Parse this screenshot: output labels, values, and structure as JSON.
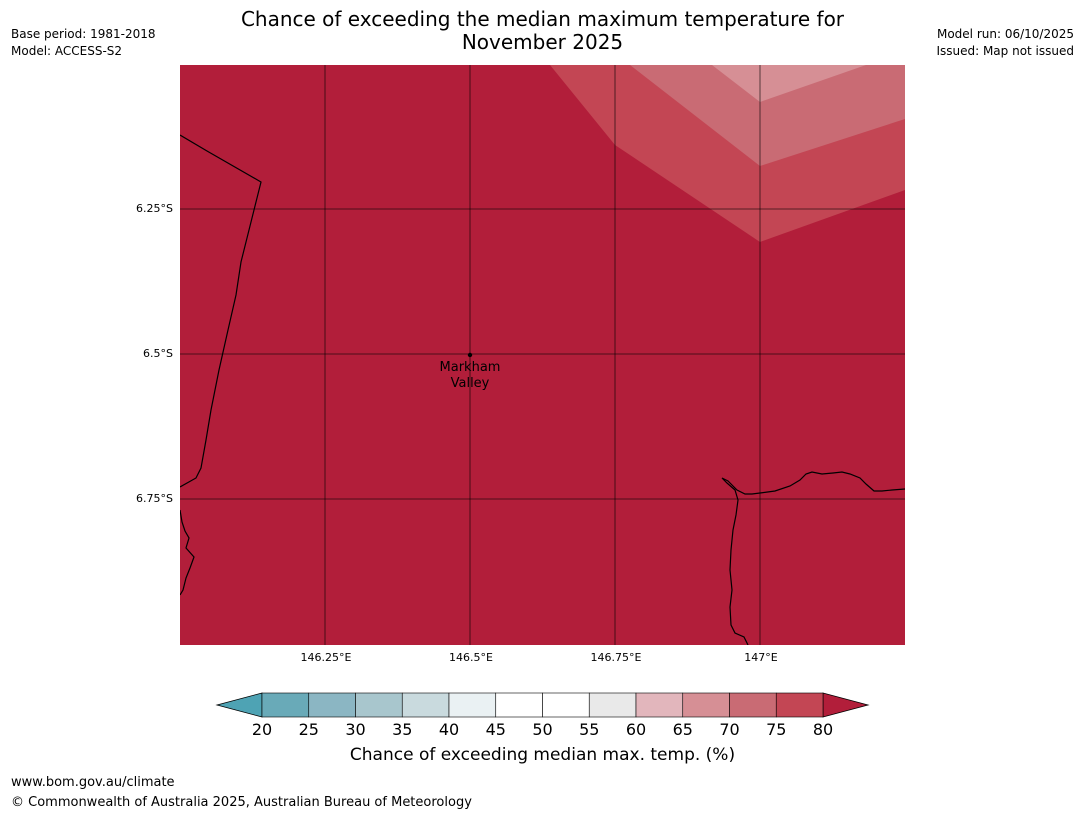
{
  "title": {
    "line1": "Chance of exceeding the median maximum temperature for",
    "line2": "November 2025"
  },
  "meta_left": {
    "base_period": "Base period: 1981-2018",
    "model": "Model: ACCESS-S2"
  },
  "meta_right": {
    "model_run": "Model run: 06/10/2025",
    "issued": "Issued: Map not issued"
  },
  "map": {
    "lat_labels": [
      "6.25°S",
      "6.5°S",
      "6.75°S"
    ],
    "lon_labels": [
      "146.25°E",
      "146.5°E",
      "146.75°E",
      "147°E"
    ],
    "place": {
      "name_line1": "Markham",
      "name_line2": "Valley",
      "marker": "location-dot"
    },
    "colors": {
      "over_80": "#b21e3a",
      "band_75_80": "#c34654",
      "band_70_75": "#c96b74",
      "band_65_70": "#d68f95",
      "gridline": "#000000",
      "coastline": "#000000"
    }
  },
  "colorbar": {
    "ticks": [
      "20",
      "25",
      "30",
      "35",
      "40",
      "45",
      "50",
      "55",
      "60",
      "65",
      "70",
      "75",
      "80"
    ],
    "colors": [
      "#69aab8",
      "#8bb6c3",
      "#a8c6cd",
      "#c9dade",
      "#eaf1f3",
      "#ffffff",
      "#ffffff",
      "#e9e9e9",
      "#e2b6bc",
      "#d68f95",
      "#c96b74",
      "#c34654"
    ],
    "under_color": "#4ea3b4",
    "over_color": "#b21e3a",
    "label": "Chance of exceeding median max. temp. (%)"
  },
  "footer": {
    "url": "www.bom.gov.au/climate",
    "copyright": "© Commonwealth of Australia 2025, Australian Bureau of Meteorology"
  }
}
